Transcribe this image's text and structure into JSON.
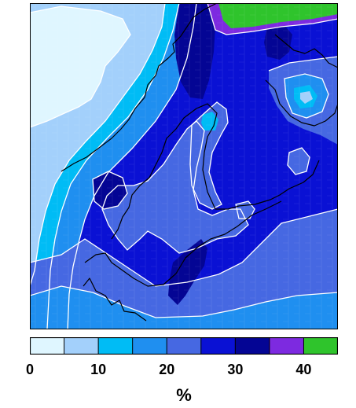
{
  "map": {
    "type": "filled-contour",
    "unit": "%",
    "levels": [
      0,
      5,
      10,
      15,
      20,
      25,
      30,
      35,
      40,
      45
    ],
    "palette": [
      "#dff6ff",
      "#a3d0fb",
      "#00bcf5",
      "#1f8ff0",
      "#4668e2",
      "#0a11d4",
      "#040594",
      "#7d2ae0",
      "#2fc42c"
    ],
    "isoline_color": "#ffffff",
    "coastline_color": "#000000"
  },
  "colorbar": {
    "tick_labels": [
      {
        "label": "0",
        "value": 0
      },
      {
        "label": "10",
        "value": 10
      },
      {
        "label": "20",
        "value": 20
      },
      {
        "label": "30",
        "value": 30
      },
      {
        "label": "40",
        "value": 40
      }
    ]
  },
  "unit_label": "%"
}
